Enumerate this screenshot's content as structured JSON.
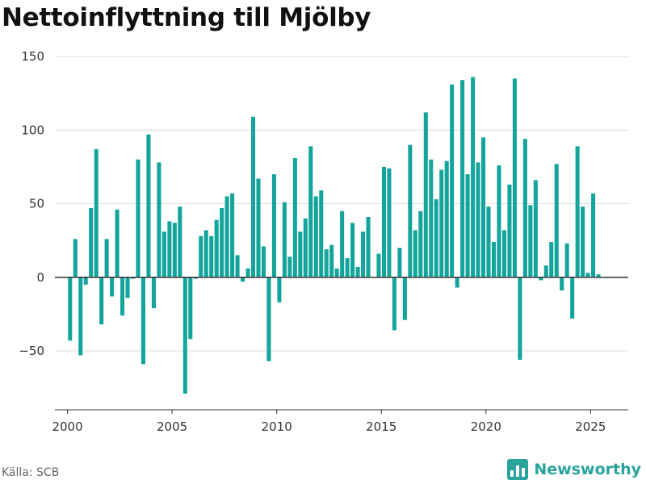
{
  "title": "Nettoinflyttning till Mjölby",
  "source": "Källa: SCB",
  "brand": "Newsworthy",
  "colors": {
    "bar": "#13a59c",
    "brand": "#2aa39d",
    "grid": "#dddddd"
  },
  "chart_data": {
    "type": "bar",
    "title": "Nettoinflyttning till Mjölby",
    "xlabel": "",
    "ylabel": "",
    "xlim": [
      1999.4,
      2026.8
    ],
    "ylim": [
      -90,
      150
    ],
    "yticks": [
      -50,
      0,
      50,
      100,
      150
    ],
    "xticks": [
      2000,
      2005,
      2010,
      2015,
      2020,
      2025
    ],
    "grid": true,
    "x": [
      2000.125,
      2000.375,
      2000.625,
      2000.875,
      2001.125,
      2001.375,
      2001.625,
      2001.875,
      2002.125,
      2002.375,
      2002.625,
      2002.875,
      2003.125,
      2003.375,
      2003.625,
      2003.875,
      2004.125,
      2004.375,
      2004.625,
      2004.875,
      2005.125,
      2005.375,
      2005.625,
      2005.875,
      2006.125,
      2006.375,
      2006.625,
      2006.875,
      2007.125,
      2007.375,
      2007.625,
      2007.875,
      2008.125,
      2008.375,
      2008.625,
      2008.875,
      2009.125,
      2009.375,
      2009.625,
      2009.875,
      2010.125,
      2010.375,
      2010.625,
      2010.875,
      2011.125,
      2011.375,
      2011.625,
      2011.875,
      2012.125,
      2012.375,
      2012.625,
      2012.875,
      2013.125,
      2013.375,
      2013.625,
      2013.875,
      2014.125,
      2014.375,
      2014.625,
      2014.875,
      2015.125,
      2015.375,
      2015.625,
      2015.875,
      2016.125,
      2016.375,
      2016.625,
      2016.875,
      2017.125,
      2017.375,
      2017.625,
      2017.875,
      2018.125,
      2018.375,
      2018.625,
      2018.875,
      2019.125,
      2019.375,
      2019.625,
      2019.875,
      2020.125,
      2020.375,
      2020.625,
      2020.875,
      2021.125,
      2021.375,
      2021.625,
      2021.875,
      2022.125,
      2022.375,
      2022.625,
      2022.875,
      2023.125,
      2023.375,
      2023.625,
      2023.875,
      2024.125,
      2024.375,
      2024.625,
      2024.875,
      2025.125,
      2025.375
    ],
    "values": [
      -43,
      26,
      -53,
      -5,
      47,
      87,
      -32,
      26,
      -13,
      46,
      -26,
      -14,
      -1,
      80,
      -59,
      97,
      -21,
      78,
      31,
      38,
      37,
      48,
      -79,
      -42,
      -1,
      28,
      32,
      28,
      39,
      47,
      55,
      57,
      15,
      -3,
      6,
      109,
      67,
      21,
      -57,
      70,
      -17,
      51,
      14,
      81,
      31,
      40,
      89,
      55,
      59,
      19,
      22,
      6,
      45,
      13,
      37,
      7,
      31,
      41,
      0,
      16,
      75,
      74,
      -36,
      20,
      -29,
      90,
      32,
      45,
      112,
      80,
      53,
      73,
      79,
      131,
      -7,
      134,
      70,
      136,
      78,
      95,
      48,
      24,
      76,
      32,
      63,
      135,
      -56,
      94,
      49,
      66,
      -2,
      8,
      24,
      77,
      -9,
      23,
      -28,
      89,
      48,
      3,
      57,
      2
    ]
  }
}
